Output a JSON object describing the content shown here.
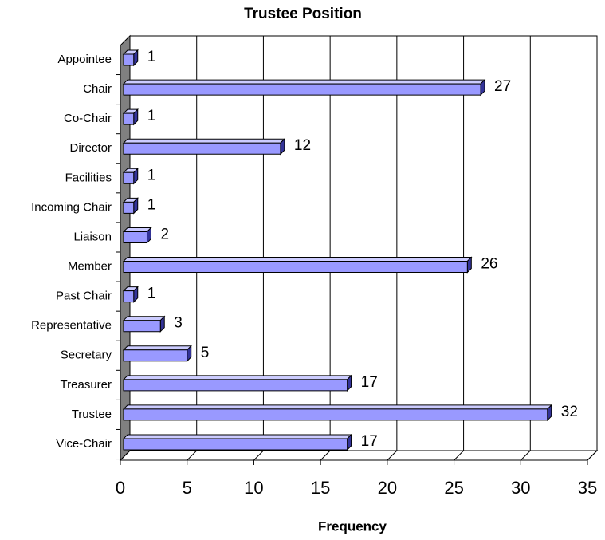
{
  "chart_data": {
    "type": "bar",
    "orientation": "horizontal",
    "title": "Trustee Position",
    "x_label": "Frequency",
    "categories": [
      "Appointee",
      "Chair",
      "Co-Chair",
      "Director",
      "Facilities",
      "Incoming Chair",
      "Liaison",
      "Member",
      "Past Chair",
      "Representative",
      "Secretary",
      "Treasurer",
      "Trustee",
      "Vice-Chair"
    ],
    "values": [
      1,
      27,
      1,
      12,
      1,
      1,
      2,
      26,
      1,
      3,
      5,
      17,
      32,
      17
    ],
    "color": "#9999ff",
    "xlim": [
      0,
      35
    ],
    "xticks": [
      0,
      5,
      10,
      15,
      20,
      25,
      30,
      35
    ],
    "grid": true
  }
}
